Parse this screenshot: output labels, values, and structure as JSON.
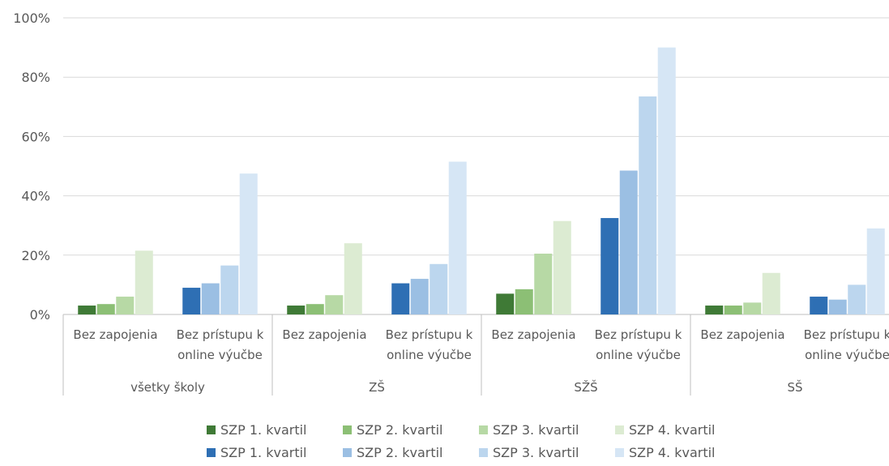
{
  "chart_data": {
    "type": "bar",
    "y_tick_labels": [
      "0%",
      "20%",
      "40%",
      "60%",
      "80%",
      "100%"
    ],
    "ylim": [
      0,
      100
    ],
    "groups": [
      {
        "label": "všetky školy",
        "categories": [
          {
            "label_lines": [
              "Bez zapojenia"
            ],
            "series": "green",
            "values": [
              3,
              3.5,
              6,
              21.5
            ]
          },
          {
            "label_lines": [
              "Bez prístupu k",
              "online výučbe"
            ],
            "series": "blue",
            "values": [
              9,
              10.5,
              16.5,
              47.5
            ]
          }
        ]
      },
      {
        "label": "ZŠ",
        "categories": [
          {
            "label_lines": [
              "Bez zapojenia"
            ],
            "series": "green",
            "values": [
              3,
              3.5,
              6.5,
              24
            ]
          },
          {
            "label_lines": [
              "Bez prístupu k",
              "online výučbe"
            ],
            "series": "blue",
            "values": [
              10.5,
              12,
              17,
              51.5
            ]
          }
        ]
      },
      {
        "label": "SŽŠ",
        "categories": [
          {
            "label_lines": [
              "Bez zapojenia"
            ],
            "series": "green",
            "values": [
              7,
              8.5,
              20.5,
              31.5
            ]
          },
          {
            "label_lines": [
              "Bez prístupu k",
              "online výučbe"
            ],
            "series": "blue",
            "values": [
              32.5,
              48.5,
              73.5,
              90
            ]
          }
        ]
      },
      {
        "label": "SŠ",
        "categories": [
          {
            "label_lines": [
              "Bez zapojenia"
            ],
            "series": "green",
            "values": [
              3,
              3,
              4,
              14
            ]
          },
          {
            "label_lines": [
              "Bez prístupu k",
              "online výučbe"
            ],
            "series": "blue",
            "values": [
              6,
              5,
              10,
              29
            ]
          }
        ]
      }
    ],
    "colors": {
      "green": [
        "#3f7a36",
        "#8cbf75",
        "#b7d9a5",
        "#dcebd2"
      ],
      "blue": [
        "#2e6fb4",
        "#9bbfe3",
        "#bcd6ee",
        "#d6e6f5"
      ]
    },
    "legend": {
      "placement": "bottom",
      "rows": [
        {
          "series": "green",
          "labels": [
            "SZP 1. kvartil",
            "SZP 2. kvartil",
            "SZP 3. kvartil",
            "SZP 4. kvartil"
          ]
        },
        {
          "series": "blue",
          "labels": [
            "SZP 1. kvartil",
            "SZP 2. kvartil",
            "SZP 3. kvartil",
            "SZP 4. kvartil"
          ]
        }
      ]
    },
    "grid": true
  }
}
